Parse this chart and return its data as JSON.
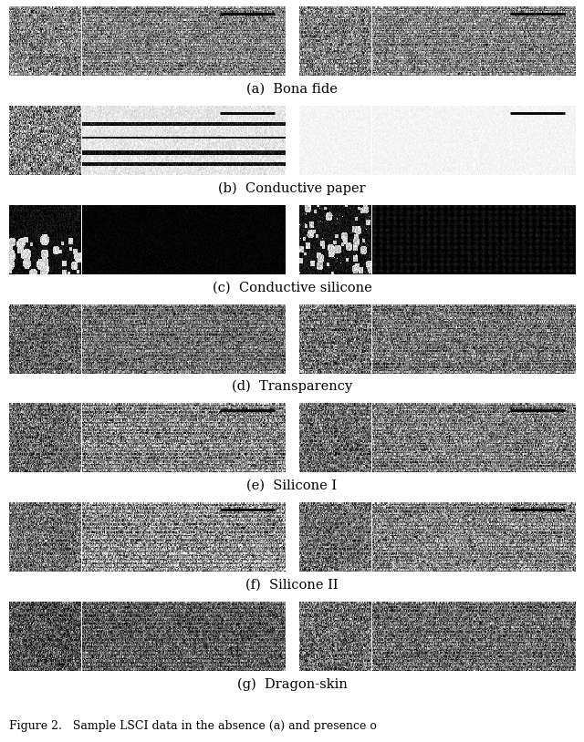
{
  "labels": [
    "(a)  Bona fide",
    "(b)  Conductive paper",
    "(c)  Conductive silicone",
    "(d)  Transparency",
    "(e)  Silicone I",
    "(f)  Silicone II",
    "(g)  Dragon-skin"
  ],
  "caption": "Figure 2.   Sample LSCI data in the absence (a) and presence o",
  "bg_color": "#ffffff"
}
